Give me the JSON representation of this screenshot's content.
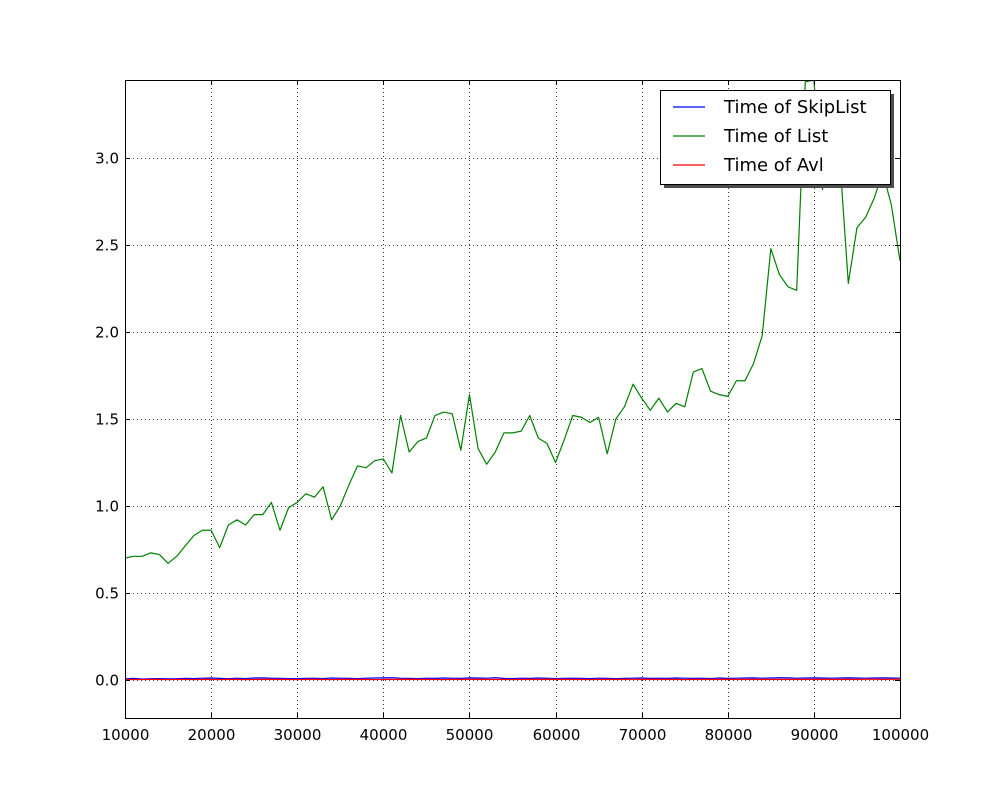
{
  "chart_data": {
    "type": "line",
    "title": "",
    "xlabel": "",
    "ylabel": "",
    "xlim": [
      10000,
      100000
    ],
    "ylim": [
      -0.22,
      3.45
    ],
    "grid": true,
    "legend_position": "top-right",
    "x_ticks": [
      10000,
      20000,
      30000,
      40000,
      50000,
      60000,
      70000,
      80000,
      90000,
      100000
    ],
    "x_tick_labels": [
      "10000",
      "20000",
      "30000",
      "40000",
      "50000",
      "60000",
      "70000",
      "80000",
      "90000",
      "100000"
    ],
    "y_ticks": [
      0.0,
      0.5,
      1.0,
      1.5,
      2.0,
      2.5,
      3.0
    ],
    "y_tick_labels": [
      "0.0",
      "0.5",
      "1.0",
      "1.5",
      "2.0",
      "2.5",
      "3.0"
    ],
    "x": [
      10000,
      11000,
      12000,
      13000,
      14000,
      15000,
      16000,
      17000,
      18000,
      19000,
      20000,
      21000,
      22000,
      23000,
      24000,
      25000,
      26000,
      27000,
      28000,
      29000,
      30000,
      31000,
      32000,
      33000,
      34000,
      35000,
      36000,
      37000,
      38000,
      39000,
      40000,
      41000,
      42000,
      43000,
      44000,
      45000,
      46000,
      47000,
      48000,
      49000,
      50000,
      51000,
      52000,
      53000,
      54000,
      55000,
      56000,
      57000,
      58000,
      59000,
      60000,
      61000,
      62000,
      63000,
      64000,
      65000,
      66000,
      67000,
      68000,
      69000,
      70000,
      71000,
      72000,
      73000,
      74000,
      75000,
      76000,
      77000,
      78000,
      79000,
      80000,
      81000,
      82000,
      83000,
      84000,
      85000,
      86000,
      87000,
      88000,
      89000,
      90000,
      91000,
      92000,
      93000,
      94000,
      95000,
      96000,
      97000,
      98000,
      99000,
      100000
    ],
    "series": [
      {
        "name": "Time of SkipList",
        "color": "#0000ff",
        "values": [
          0.005,
          0.008,
          0.004,
          0.006,
          0.007,
          0.005,
          0.006,
          0.008,
          0.007,
          0.009,
          0.01,
          0.008,
          0.006,
          0.009,
          0.007,
          0.01,
          0.011,
          0.009,
          0.008,
          0.007,
          0.006,
          0.008,
          0.009,
          0.007,
          0.01,
          0.009,
          0.008,
          0.007,
          0.009,
          0.01,
          0.011,
          0.012,
          0.009,
          0.008,
          0.007,
          0.009,
          0.008,
          0.01,
          0.009,
          0.008,
          0.011,
          0.01,
          0.009,
          0.012,
          0.008,
          0.007,
          0.009,
          0.008,
          0.01,
          0.009,
          0.007,
          0.008,
          0.009,
          0.008,
          0.007,
          0.009,
          0.008,
          0.007,
          0.008,
          0.009,
          0.01,
          0.008,
          0.009,
          0.008,
          0.01,
          0.009,
          0.008,
          0.009,
          0.007,
          0.01,
          0.008,
          0.009,
          0.01,
          0.011,
          0.009,
          0.01,
          0.012,
          0.011,
          0.009,
          0.01,
          0.011,
          0.01,
          0.009,
          0.01,
          0.011,
          0.01,
          0.009,
          0.01,
          0.011,
          0.01,
          0.009
        ]
      },
      {
        "name": "Time of List",
        "color": "#008000",
        "values": [
          0.7,
          0.71,
          0.71,
          0.73,
          0.72,
          0.67,
          0.71,
          0.77,
          0.83,
          0.86,
          0.86,
          0.76,
          0.89,
          0.92,
          0.89,
          0.95,
          0.95,
          1.02,
          0.86,
          0.99,
          1.02,
          1.07,
          1.05,
          1.11,
          0.92,
          1.0,
          1.12,
          1.23,
          1.22,
          1.26,
          1.27,
          1.19,
          1.52,
          1.31,
          1.37,
          1.39,
          1.52,
          1.54,
          1.53,
          1.32,
          1.64,
          1.33,
          1.24,
          1.31,
          1.42,
          1.42,
          1.43,
          1.52,
          1.39,
          1.36,
          1.25,
          1.38,
          1.52,
          1.51,
          1.48,
          1.51,
          1.3,
          1.5,
          1.57,
          1.7,
          1.62,
          1.55,
          1.62,
          1.54,
          1.59,
          1.57,
          1.77,
          1.79,
          1.66,
          1.64,
          1.63,
          1.72,
          1.72,
          1.82,
          1.98,
          2.48,
          2.33,
          2.26,
          2.24,
          3.44,
          3.45,
          2.82,
          3.2,
          3.0,
          2.28,
          2.6,
          2.66,
          2.77,
          2.92,
          2.73,
          2.41
        ]
      },
      {
        "name": "Time of Avl",
        "color": "#ff0000",
        "values": [
          0.001,
          0.002,
          0.001,
          0.002,
          0.002,
          0.001,
          0.002,
          0.002,
          0.001,
          0.002,
          0.002,
          0.001,
          0.002,
          0.002,
          0.001,
          0.002,
          0.002,
          0.003,
          0.002,
          0.002,
          0.001,
          0.002,
          0.002,
          0.002,
          0.001,
          0.002,
          0.002,
          0.002,
          0.002,
          0.001,
          0.002,
          0.002,
          0.002,
          0.003,
          0.002,
          0.002,
          0.002,
          0.001,
          0.002,
          0.002,
          0.002,
          0.003,
          0.002,
          0.002,
          0.002,
          0.001,
          0.002,
          0.002,
          0.002,
          0.003,
          0.002,
          0.002,
          0.002,
          0.002,
          0.001,
          0.002,
          0.002,
          0.002,
          0.002,
          0.003,
          0.002,
          0.002,
          0.002,
          0.002,
          0.002,
          0.001,
          0.002,
          0.002,
          0.002,
          0.002,
          0.003,
          0.002,
          0.002,
          0.002,
          0.002,
          0.002,
          0.003,
          0.002,
          0.002,
          0.002,
          0.002,
          0.003,
          0.002,
          0.002,
          0.003,
          0.002,
          0.003,
          0.003,
          0.002,
          0.003,
          0.003
        ]
      }
    ]
  }
}
